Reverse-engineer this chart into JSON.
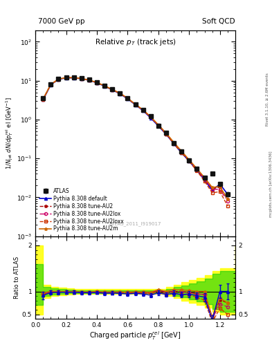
{
  "title_left": "7000 GeV pp",
  "title_right": "Soft QCD",
  "plot_title": "Relative $p_T$ (track jets)",
  "xlabel": "Charged particle $p_T^{rel}$ [GeV]",
  "ylabel_main": "$1/N_{jet}$ $dN/dp_T^{rel}$ el [GeV$^{-1}$]",
  "ylabel_ratio": "Ratio to ATLAS",
  "right_label_top": "Rivet 3.1.10, ≥ 2.6M events",
  "right_label_bot": "mcplots.cern.ch [arXiv:1306.3436]",
  "watermark": "ATLAS_2011_I919017",
  "xlim": [
    0,
    1.3
  ],
  "ylim_main": [
    0.001,
    200
  ],
  "ylim_ratio": [
    0.41,
    2.2
  ],
  "ratio_yticks": [
    0.5,
    1.0,
    2.0
  ],
  "ratio_yticklabels": [
    "0.5",
    "1",
    "2"
  ],
  "data_x": [
    0.05,
    0.1,
    0.15,
    0.2,
    0.25,
    0.3,
    0.35,
    0.4,
    0.45,
    0.5,
    0.55,
    0.6,
    0.65,
    0.7,
    0.75,
    0.8,
    0.85,
    0.9,
    0.95,
    1.0,
    1.05,
    1.1,
    1.15,
    1.2,
    1.25
  ],
  "data_y": [
    3.5,
    8.0,
    11.0,
    12.0,
    12.0,
    11.5,
    10.5,
    9.0,
    7.5,
    6.0,
    4.8,
    3.6,
    2.5,
    1.8,
    1.2,
    0.7,
    0.45,
    0.25,
    0.15,
    0.09,
    0.055,
    0.032,
    0.04,
    0.022,
    0.012
  ],
  "data_yerr": [
    0.3,
    0.4,
    0.5,
    0.5,
    0.5,
    0.4,
    0.4,
    0.3,
    0.3,
    0.25,
    0.2,
    0.15,
    0.1,
    0.08,
    0.05,
    0.04,
    0.02,
    0.015,
    0.01,
    0.006,
    0.004,
    0.003,
    0.004,
    0.003,
    0.002
  ],
  "pythia_default_y": [
    3.2,
    7.8,
    10.8,
    11.8,
    11.8,
    11.2,
    10.2,
    8.8,
    7.2,
    5.8,
    4.6,
    3.4,
    2.4,
    1.7,
    1.1,
    0.68,
    0.42,
    0.24,
    0.14,
    0.085,
    0.05,
    0.028,
    0.015,
    0.022,
    0.012
  ],
  "pythia_AU2_y": [
    3.3,
    7.9,
    10.9,
    11.9,
    11.9,
    11.3,
    10.3,
    8.9,
    7.3,
    5.9,
    4.7,
    3.5,
    2.45,
    1.75,
    1.15,
    0.72,
    0.44,
    0.25,
    0.15,
    0.088,
    0.052,
    0.03,
    0.017,
    0.018,
    0.009
  ],
  "pythia_AU2lox_y": [
    3.3,
    7.9,
    10.9,
    11.9,
    11.9,
    11.3,
    10.3,
    8.9,
    7.3,
    5.9,
    4.7,
    3.5,
    2.45,
    1.75,
    1.15,
    0.72,
    0.44,
    0.25,
    0.15,
    0.088,
    0.052,
    0.03,
    0.016,
    0.016,
    0.008
  ],
  "pythia_AU2loxx_y": [
    3.3,
    7.9,
    10.9,
    11.9,
    11.9,
    11.3,
    10.3,
    8.9,
    7.3,
    5.9,
    4.7,
    3.5,
    2.45,
    1.75,
    1.15,
    0.7,
    0.42,
    0.24,
    0.14,
    0.084,
    0.048,
    0.026,
    0.013,
    0.014,
    0.006
  ],
  "pythia_AU2m_y": [
    3.4,
    8.0,
    11.0,
    12.0,
    12.0,
    11.4,
    10.4,
    9.0,
    7.4,
    5.95,
    4.75,
    3.55,
    2.48,
    1.78,
    1.18,
    0.73,
    0.45,
    0.26,
    0.155,
    0.092,
    0.055,
    0.032,
    0.018,
    0.019,
    0.009
  ],
  "color_atlas": "#111111",
  "color_default": "#0000cc",
  "color_AU2": "#aa0000",
  "color_AU2lox": "#cc0066",
  "color_AU2loxx": "#cc3300",
  "color_AU2m": "#cc6600",
  "yellow_band_x": [
    0.0,
    0.05,
    0.1,
    0.15,
    0.2,
    0.25,
    0.3,
    0.35,
    0.4,
    0.45,
    0.5,
    0.55,
    0.6,
    0.65,
    0.7,
    0.75,
    0.8,
    0.85,
    0.9,
    0.95,
    1.0,
    1.05,
    1.1,
    1.15,
    1.2,
    1.25,
    1.3
  ],
  "yellow_band_lo": [
    0.5,
    0.85,
    0.9,
    0.92,
    0.93,
    0.94,
    0.95,
    0.95,
    0.95,
    0.95,
    0.95,
    0.95,
    0.95,
    0.95,
    0.95,
    0.95,
    0.95,
    0.9,
    0.85,
    0.8,
    0.75,
    0.7,
    0.65,
    0.55,
    0.5,
    0.5,
    0.5
  ],
  "yellow_band_hi": [
    2.0,
    1.15,
    1.1,
    1.08,
    1.07,
    1.06,
    1.05,
    1.05,
    1.05,
    1.05,
    1.05,
    1.05,
    1.05,
    1.05,
    1.05,
    1.05,
    1.05,
    1.1,
    1.15,
    1.2,
    1.25,
    1.3,
    1.35,
    1.45,
    1.5,
    1.5,
    2.0
  ],
  "green_band_lo": [
    0.7,
    0.9,
    0.93,
    0.95,
    0.96,
    0.97,
    0.97,
    0.97,
    0.97,
    0.97,
    0.97,
    0.97,
    0.97,
    0.97,
    0.97,
    0.97,
    0.97,
    0.95,
    0.9,
    0.87,
    0.82,
    0.78,
    0.72,
    0.62,
    0.55,
    0.55,
    0.55
  ],
  "green_band_hi": [
    1.6,
    1.1,
    1.07,
    1.05,
    1.04,
    1.03,
    1.03,
    1.03,
    1.03,
    1.03,
    1.03,
    1.03,
    1.03,
    1.03,
    1.03,
    1.03,
    1.03,
    1.05,
    1.1,
    1.13,
    1.18,
    1.22,
    1.28,
    1.38,
    1.45,
    1.45,
    1.45
  ]
}
